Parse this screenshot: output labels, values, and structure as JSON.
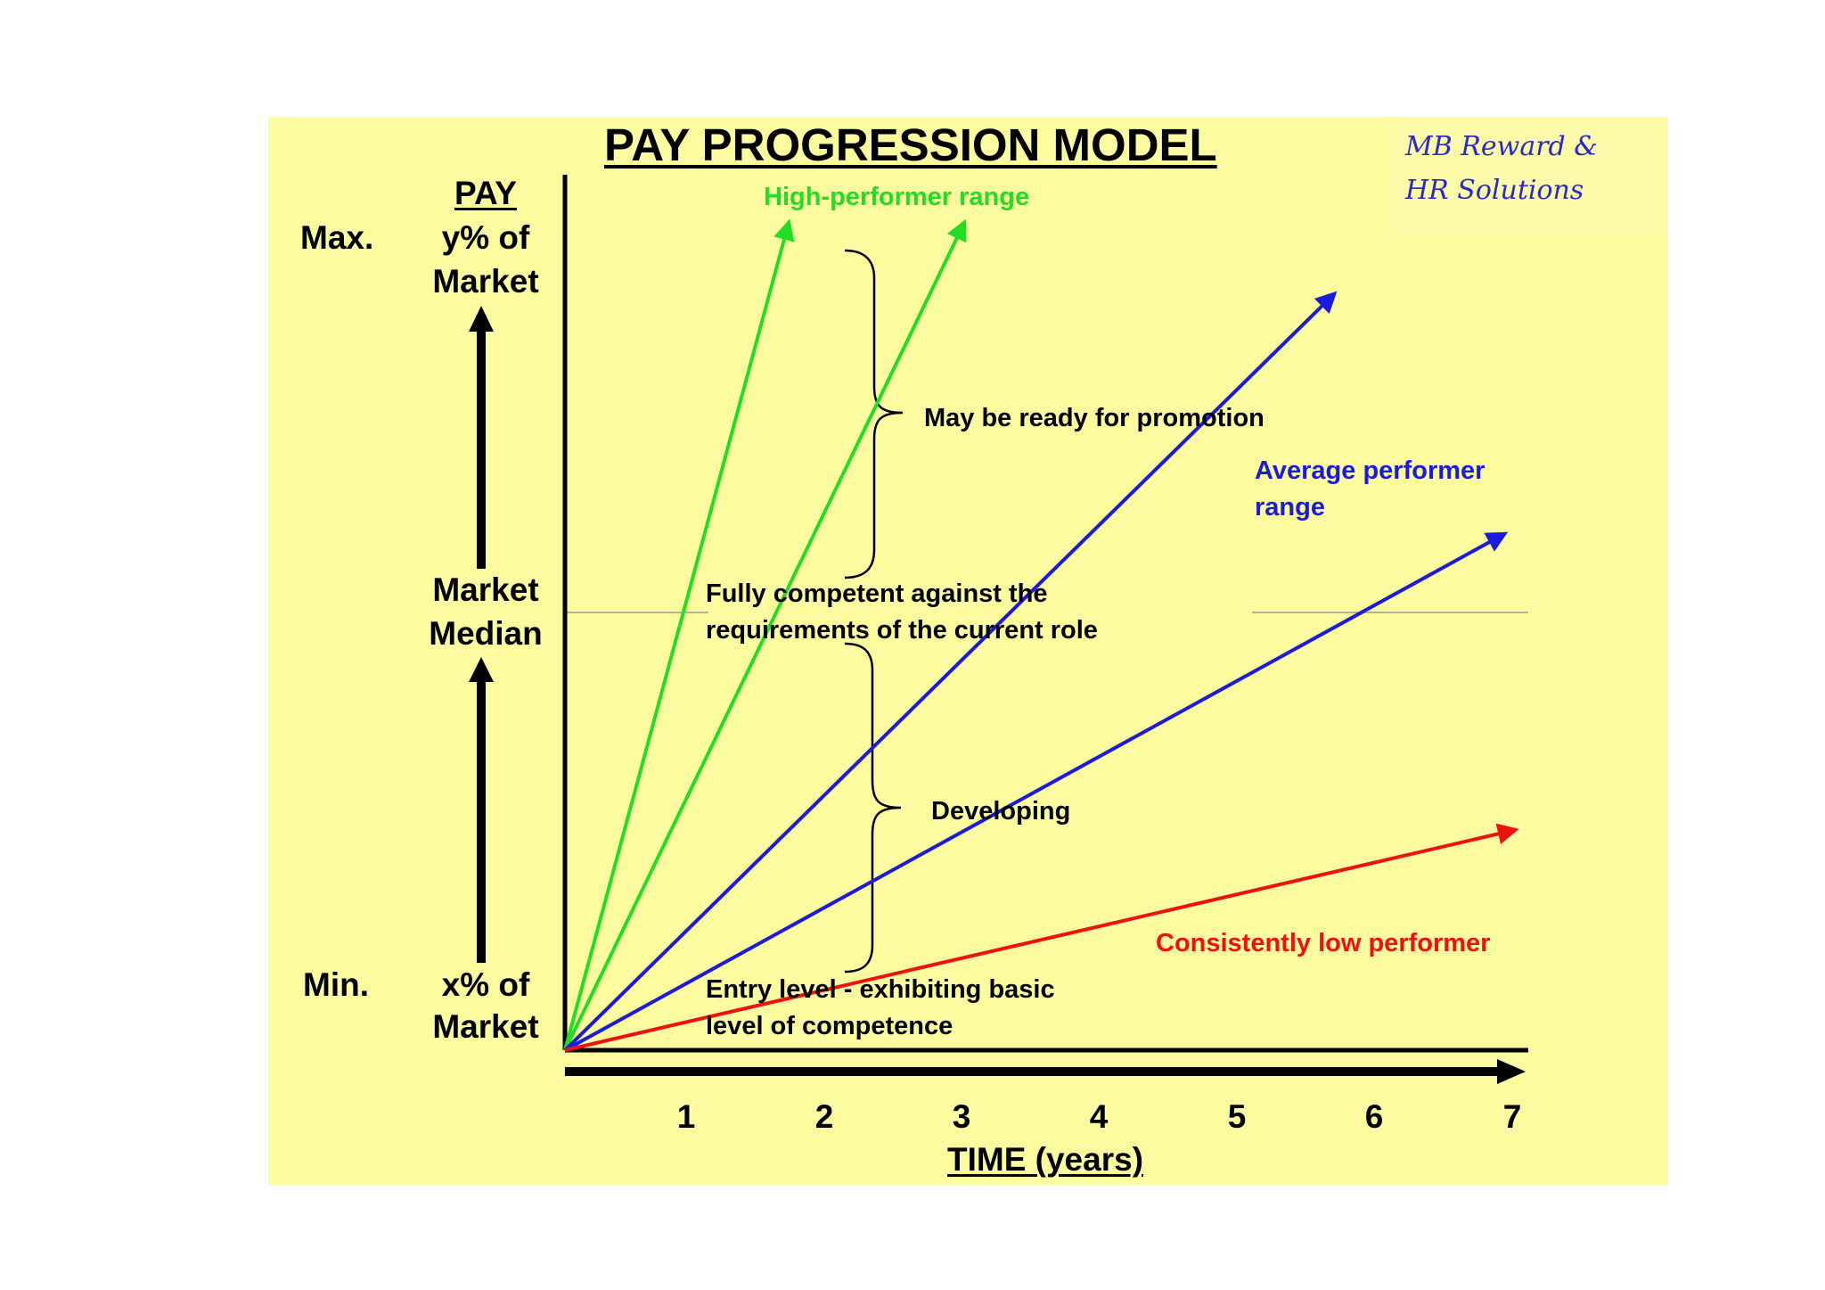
{
  "title": "PAY PROGRESSION MODEL",
  "logo": {
    "line1": "MB Reward &",
    "line2": "HR Solutions"
  },
  "y_axis": {
    "heading": "PAY",
    "max_label": "Max.",
    "max_value_line1": "y% of",
    "max_value_line2": "Market",
    "median_line1": "Market",
    "median_line2": "Median",
    "min_label": "Min.",
    "min_value_line1": "x% of",
    "min_value_line2": "Market"
  },
  "x_axis": {
    "label": "TIME (years)",
    "ticks": [
      "1",
      "2",
      "3",
      "4",
      "5",
      "6",
      "7"
    ]
  },
  "bands": {
    "promotion": "May be ready for promotion",
    "competent_line1": "Fully competent against the",
    "competent_line2": "requirements of the current role",
    "developing": "Developing",
    "entry_line1": "Entry level - exhibiting basic",
    "entry_line2": "level of competence"
  },
  "range_labels": {
    "high": "High-performer range",
    "average_line1": "Average performer",
    "average_line2": "range",
    "low": "Consistently low performer"
  },
  "colors": {
    "background": "#fdfb9f",
    "high": "#22dd22",
    "average": "#1a1ae0",
    "low": "#ee1111",
    "axis": "#000000"
  },
  "icons": [
    "up-arrow-icon",
    "right-arrow-icon",
    "curly-brace-icon"
  ]
}
